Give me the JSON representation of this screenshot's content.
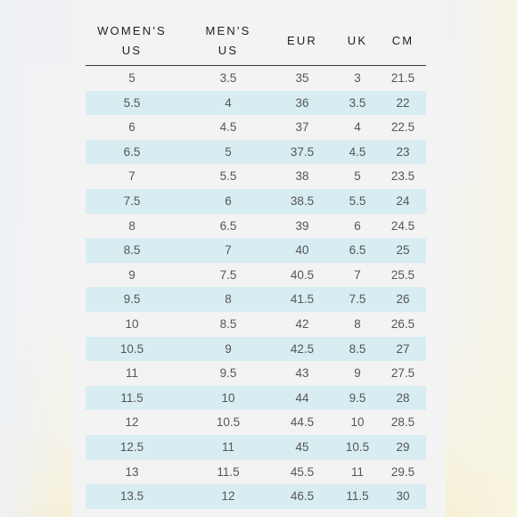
{
  "chart_data": {
    "type": "table",
    "columns": [
      "WOMEN'S US",
      "MEN'S US",
      "EUR",
      "UK",
      "CM"
    ],
    "rows": [
      [
        "5",
        "3.5",
        "35",
        "3",
        "21.5"
      ],
      [
        "5.5",
        "4",
        "36",
        "3.5",
        "22"
      ],
      [
        "6",
        "4.5",
        "37",
        "4",
        "22.5"
      ],
      [
        "6.5",
        "5",
        "37.5",
        "4.5",
        "23"
      ],
      [
        "7",
        "5.5",
        "38",
        "5",
        "23.5"
      ],
      [
        "7.5",
        "6",
        "38.5",
        "5.5",
        "24"
      ],
      [
        "8",
        "6.5",
        "39",
        "6",
        "24.5"
      ],
      [
        "8.5",
        "7",
        "40",
        "6.5",
        "25"
      ],
      [
        "9",
        "7.5",
        "40.5",
        "7",
        "25.5"
      ],
      [
        "9.5",
        "8",
        "41.5",
        "7.5",
        "26"
      ],
      [
        "10",
        "8.5",
        "42",
        "8",
        "26.5"
      ],
      [
        "10.5",
        "9",
        "42.5",
        "8.5",
        "27"
      ],
      [
        "11",
        "9.5",
        "43",
        "9",
        "27.5"
      ],
      [
        "11.5",
        "10",
        "44",
        "9.5",
        "28"
      ],
      [
        "12",
        "10.5",
        "44.5",
        "10",
        "28.5"
      ],
      [
        "12.5",
        "11",
        "45",
        "10.5",
        "29"
      ],
      [
        "13",
        "11.5",
        "45.5",
        "11",
        "29.5"
      ],
      [
        "13.5",
        "12",
        "46.5",
        "11.5",
        "30"
      ]
    ]
  },
  "table": {
    "header": {
      "womens_line1": "WOMEN'S",
      "womens_line2": "US",
      "mens_line1": "MEN'S",
      "mens_line2": "US",
      "eur": "EUR",
      "uk": "UK",
      "cm": "CM"
    }
  },
  "colors": {
    "stripe": "#d8edf2",
    "background": "#f4f3f4",
    "header_rule": "#3a3a3a"
  }
}
